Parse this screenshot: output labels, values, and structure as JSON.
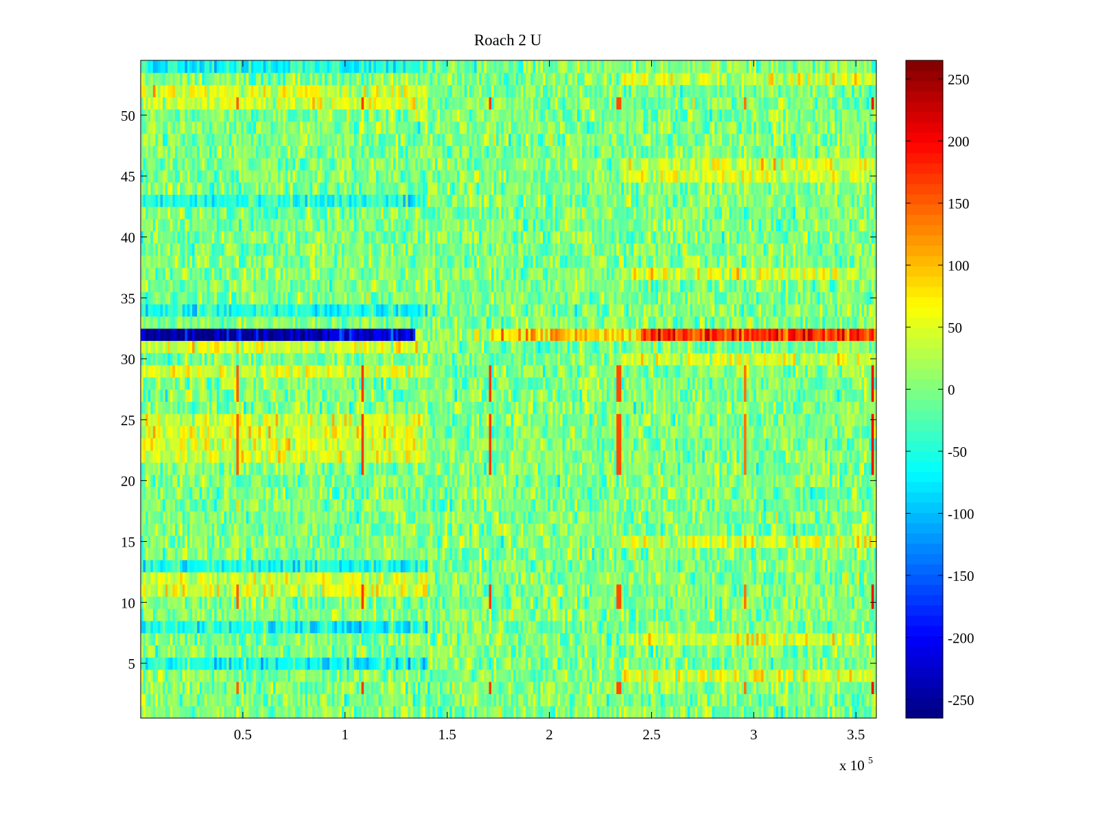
{
  "chart_data": {
    "type": "heatmap",
    "title": "Roach 2 U",
    "xlabel": "",
    "ylabel": "",
    "x_multiplier_label": "x 10",
    "x_multiplier_exponent": "5",
    "xlim": [
      0,
      3.6
    ],
    "ylim": [
      0.5,
      54.5
    ],
    "x_ticks": [
      0.5,
      1,
      1.5,
      2,
      2.5,
      3,
      3.5
    ],
    "x_tick_labels": [
      "0.5",
      "1",
      "1.5",
      "2",
      "2.5",
      "3",
      "3.5"
    ],
    "y_ticks": [
      5,
      10,
      15,
      20,
      25,
      30,
      35,
      40,
      45,
      50
    ],
    "y_tick_labels": [
      "5",
      "10",
      "15",
      "20",
      "25",
      "30",
      "35",
      "40",
      "45",
      "50"
    ],
    "rows": 54,
    "colorbar": {
      "colormap": "jet",
      "range": [
        -265,
        265
      ],
      "ticks": [
        -250,
        -200,
        -150,
        -100,
        -50,
        0,
        50,
        100,
        150,
        200,
        250
      ],
      "tick_labels": [
        "-250",
        "-200",
        "-150",
        "-100",
        "-50",
        "0",
        "50",
        "100",
        "150",
        "200",
        "250"
      ]
    },
    "features": {
      "noise_baseline_mean": 0,
      "noise_amplitude": 45,
      "strong_row": {
        "row": 32,
        "segments": [
          {
            "x_from": 0.0,
            "x_to": 0.95,
            "value": -240
          },
          {
            "x_from": 0.95,
            "x_to": 1.35,
            "value": -220
          },
          {
            "x_from": 1.35,
            "x_to": 1.7,
            "value": 10
          },
          {
            "x_from": 1.7,
            "x_to": 2.45,
            "value": 90
          },
          {
            "x_from": 2.45,
            "x_to": 3.6,
            "value": 170
          }
        ]
      },
      "negative_rows_left": [
        8,
        5,
        13,
        34,
        43,
        54
      ],
      "positive_rows_left": [
        11,
        12,
        22,
        23,
        24,
        25,
        29,
        31,
        51,
        52
      ],
      "positive_rows_right": [
        4,
        7,
        15,
        30,
        37,
        45,
        46,
        53
      ],
      "vertical_spikes": [
        {
          "x": 0.47,
          "value": 150
        },
        {
          "x": 1.09,
          "value": 170
        },
        {
          "x": 1.71,
          "value": 170
        },
        {
          "x": 2.34,
          "value": 160
        },
        {
          "x": 2.96,
          "value": 140
        },
        {
          "x": 3.58,
          "value": 200
        }
      ],
      "spike_rows": [
        3,
        10,
        11,
        21,
        22,
        23,
        24,
        25,
        27,
        28,
        29,
        51
      ]
    }
  }
}
